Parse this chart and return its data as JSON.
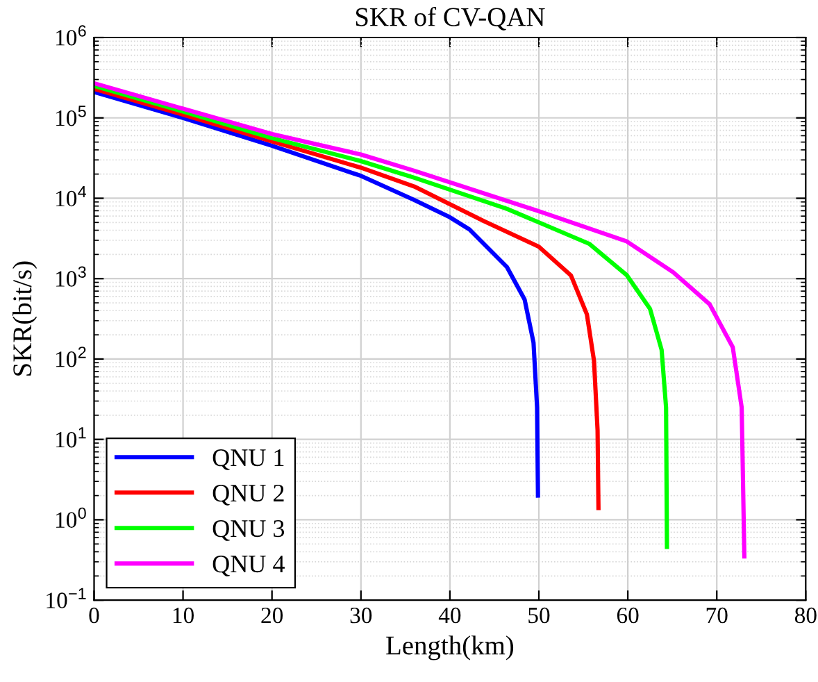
{
  "chart_data": {
    "type": "line",
    "title": "SKR of CV-QAN",
    "xlabel": "Length(km)",
    "ylabel": "SKR(bit/s)",
    "log": "y",
    "grid": true,
    "legend": "bottom left",
    "marker": "none",
    "line_style": "solid",
    "xlim": [
      0,
      80
    ],
    "xticks": [
      0,
      10,
      20,
      30,
      40,
      50,
      60,
      70,
      80
    ],
    "ylim": [
      0.1,
      1000000
    ],
    "yticks": [
      {
        "value": 0.1,
        "label": "10$^{−1}$"
      },
      {
        "value": 1,
        "label": "10$^{0}$"
      },
      {
        "value": 10,
        "label": "10$^{1}$"
      },
      {
        "value": 100,
        "label": "10$^{2}$"
      },
      {
        "value": 1000,
        "label": "10$^{3}$"
      },
      {
        "value": 10000,
        "label": "10$^{4}$"
      },
      {
        "value": 100000,
        "label": "10$^{5}$"
      },
      {
        "value": 1000000,
        "label": "10$^{6}$"
      }
    ],
    "series": [
      {
        "name": "QNU 1",
        "color": "#0000ff",
        "x": [
          0,
          10,
          20,
          30,
          36,
          40,
          42.2,
          46.4,
          48.4,
          49.4,
          49.8,
          49.9
        ],
        "values": [
          210000,
          100000,
          45000,
          19000,
          9500,
          5800,
          4100,
          1400,
          550,
          160,
          25,
          2.0
        ]
      },
      {
        "name": "QNU 2",
        "color": "#ff0000",
        "x": [
          0,
          10,
          20,
          30,
          36,
          43.8,
          50,
          53.6,
          55.4,
          56.2,
          56.6,
          56.7
        ],
        "values": [
          230000,
          110000,
          51000,
          24000,
          14000,
          5200,
          2500,
          1100,
          360,
          95,
          13,
          1.4
        ]
      },
      {
        "name": "QNU 3",
        "color": "#00ff00",
        "x": [
          0,
          10,
          20,
          30,
          36,
          46.4,
          55.7,
          59.9,
          62.5,
          63.8,
          64.3,
          64.4
        ],
        "values": [
          250000,
          120000,
          56000,
          29000,
          18000,
          7400,
          2700,
          1100,
          420,
          130,
          25,
          0.46
        ]
      },
      {
        "name": "QNU 4",
        "color": "#ff00ff",
        "x": [
          0,
          10,
          20,
          30,
          36,
          50,
          59.9,
          65.1,
          69.2,
          71.8,
          72.8,
          73.1
        ],
        "values": [
          270000,
          130000,
          63000,
          35000,
          22000,
          6900,
          2900,
          1200,
          480,
          140,
          25,
          0.35
        ]
      }
    ]
  }
}
